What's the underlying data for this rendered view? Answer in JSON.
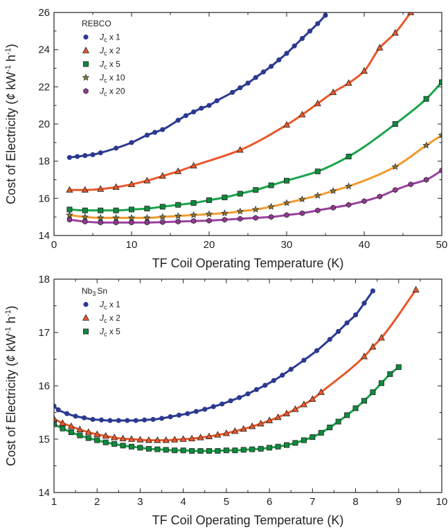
{
  "chart_data": [
    {
      "type": "line",
      "title": "",
      "legend_title": "REBCO",
      "xlabel": "TF Coil Operating Temperature (K)",
      "ylabel_main": "Cost of Electricity (",
      "ylabel_cent": "¢",
      "ylabel_unit": " kW",
      "ylabel_exp1": "-1",
      "ylabel_h": " h",
      "ylabel_exp2": "-1",
      "ylabel_close": ")",
      "xlim": [
        0,
        50
      ],
      "ylim": [
        14,
        26
      ],
      "xticks": [
        0,
        10,
        20,
        30,
        40,
        50
      ],
      "yticks": [
        14,
        16,
        18,
        20,
        22,
        24,
        26
      ],
      "legend_position": "top-left",
      "grid": false,
      "series": [
        {
          "name_base": "J",
          "name_sub": "c",
          "name_rest": " x 1",
          "color": "#2b3990",
          "line": "#2b3990",
          "marker": "circle",
          "x": [
            2,
            3,
            4,
            5,
            6,
            8,
            10,
            12,
            13,
            14,
            16,
            17,
            18,
            19,
            20,
            21,
            23,
            24,
            25,
            26,
            27,
            28,
            29,
            30,
            31,
            32,
            33,
            34,
            35
          ],
          "y": [
            18.2,
            18.25,
            18.3,
            18.35,
            18.45,
            18.7,
            19.0,
            19.4,
            19.55,
            19.7,
            20.2,
            20.45,
            20.65,
            20.85,
            21.0,
            21.25,
            21.7,
            21.95,
            22.2,
            22.5,
            22.8,
            23.1,
            23.45,
            23.8,
            24.2,
            24.6,
            25.0,
            25.4,
            25.85
          ]
        },
        {
          "name_base": "J",
          "name_sub": "c",
          "name_rest": " x 2",
          "color": "#e8582a",
          "line": "#e8582a",
          "marker": "triangle",
          "x": [
            2,
            4,
            6,
            8,
            10,
            12,
            14,
            16,
            18,
            24,
            30,
            32,
            34,
            36,
            38,
            40,
            42,
            44,
            46
          ],
          "y": [
            16.45,
            16.45,
            16.5,
            16.6,
            16.75,
            16.95,
            17.2,
            17.45,
            17.75,
            18.6,
            19.95,
            20.5,
            21.1,
            21.7,
            22.2,
            22.85,
            24.1,
            24.9,
            26.0
          ]
        },
        {
          "name_base": "J",
          "name_sub": "c",
          "name_rest": " x 5",
          "color": "#0e8a3c",
          "line": "#1aa34a",
          "marker": "square",
          "x": [
            2,
            4,
            6,
            8,
            10,
            12,
            14,
            16,
            18,
            20,
            22,
            24,
            26,
            28,
            30,
            34,
            38,
            44,
            48,
            50
          ],
          "y": [
            15.4,
            15.35,
            15.35,
            15.35,
            15.4,
            15.45,
            15.55,
            15.65,
            15.75,
            15.9,
            16.05,
            16.25,
            16.45,
            16.7,
            16.95,
            17.45,
            18.25,
            20.0,
            21.35,
            22.25
          ]
        },
        {
          "name_base": "J",
          "name_sub": "c",
          "name_rest": " x 10",
          "color": "#8a7a3a",
          "line": "#f29a2e",
          "marker": "star",
          "x": [
            2,
            4,
            6,
            8,
            10,
            12,
            14,
            16,
            18,
            20,
            22,
            24,
            26,
            28,
            30,
            32,
            34,
            36,
            38,
            44,
            48,
            50
          ],
          "y": [
            15.1,
            15.0,
            14.95,
            14.95,
            14.95,
            14.95,
            15.0,
            15.05,
            15.1,
            15.15,
            15.2,
            15.3,
            15.4,
            15.55,
            15.75,
            15.95,
            16.15,
            16.4,
            16.65,
            17.7,
            18.85,
            19.4
          ]
        },
        {
          "name_base": "J",
          "name_sub": "c",
          "name_rest": " x 20",
          "color": "#8e3a8e",
          "line": "#9a3fa0",
          "marker": "hexagon",
          "x": [
            2,
            4,
            6,
            8,
            10,
            12,
            14,
            16,
            18,
            20,
            22,
            24,
            26,
            28,
            30,
            32,
            34,
            36,
            38,
            40,
            42,
            44,
            46,
            48,
            50
          ],
          "y": [
            14.85,
            14.75,
            14.7,
            14.7,
            14.7,
            14.7,
            14.72,
            14.75,
            14.78,
            14.8,
            14.85,
            14.9,
            14.95,
            15.0,
            15.1,
            15.2,
            15.35,
            15.5,
            15.65,
            15.85,
            16.1,
            16.45,
            16.75,
            17.0,
            17.5
          ]
        }
      ]
    },
    {
      "type": "line",
      "title": "",
      "legend_title_base": "Nb",
      "legend_title_sub": "3",
      "legend_title_rest": "Sn",
      "xlabel": "TF Coil Operating Temperature (K)",
      "ylabel_main": "Cost of Electricity (",
      "ylabel_cent": "¢",
      "ylabel_unit": " kW",
      "ylabel_exp1": "-1",
      "ylabel_h": " h",
      "ylabel_exp2": "-1",
      "ylabel_close": ")",
      "xlim": [
        1,
        10
      ],
      "ylim": [
        14,
        18
      ],
      "xticks": [
        1,
        2,
        3,
        4,
        5,
        6,
        7,
        8,
        9,
        10
      ],
      "yticks": [
        14,
        15,
        16,
        17,
        18
      ],
      "legend_position": "top-left",
      "grid": false,
      "series": [
        {
          "name_base": "J",
          "name_sub": "c",
          "name_rest": " x 1",
          "color": "#2b3990",
          "line": "#2b3990",
          "marker": "circle",
          "x": [
            1.0,
            1.1,
            1.3,
            1.5,
            1.7,
            1.9,
            2.1,
            2.3,
            2.5,
            2.7,
            2.9,
            3.1,
            3.3,
            3.5,
            3.7,
            3.9,
            4.1,
            4.3,
            4.5,
            4.7,
            4.9,
            5.1,
            5.3,
            5.5,
            5.7,
            5.9,
            6.1,
            6.3,
            6.5,
            6.8,
            7.1,
            7.4,
            7.6,
            7.8,
            8.0,
            8.2,
            8.4
          ],
          "y": [
            15.62,
            15.55,
            15.48,
            15.43,
            15.4,
            15.37,
            15.36,
            15.35,
            15.35,
            15.35,
            15.35,
            15.36,
            15.37,
            15.39,
            15.42,
            15.45,
            15.48,
            15.52,
            15.56,
            15.61,
            15.66,
            15.72,
            15.78,
            15.85,
            15.93,
            16.01,
            16.1,
            16.2,
            16.31,
            16.48,
            16.66,
            16.87,
            17.02,
            17.18,
            17.33,
            17.55,
            17.78
          ]
        },
        {
          "name_base": "J",
          "name_sub": "c",
          "name_rest": " x 2",
          "color": "#e8582a",
          "line": "#e8582a",
          "marker": "triangle",
          "x": [
            1.0,
            1.2,
            1.4,
            1.6,
            1.8,
            2.0,
            2.2,
            2.4,
            2.6,
            2.8,
            3.0,
            3.2,
            3.4,
            3.6,
            3.8,
            4.0,
            4.2,
            4.4,
            4.6,
            4.8,
            5.0,
            5.2,
            5.4,
            5.6,
            5.8,
            6.0,
            6.2,
            6.4,
            6.6,
            6.8,
            7.0,
            7.2,
            8.2,
            8.4,
            8.6,
            9.4
          ],
          "y": [
            15.38,
            15.3,
            15.24,
            15.18,
            15.13,
            15.09,
            15.06,
            15.03,
            15.01,
            15.0,
            14.99,
            14.98,
            14.98,
            14.98,
            14.99,
            15.0,
            15.01,
            15.03,
            15.05,
            15.08,
            15.11,
            15.15,
            15.19,
            15.24,
            15.29,
            15.35,
            15.41,
            15.48,
            15.56,
            15.65,
            15.75,
            15.88,
            16.55,
            16.73,
            16.9,
            17.8
          ]
        },
        {
          "name_base": "J",
          "name_sub": "c",
          "name_rest": " x 5",
          "color": "#0e8a3c",
          "line": "#1aa34a",
          "marker": "square",
          "x": [
            1.0,
            1.2,
            1.4,
            1.6,
            1.8,
            2.0,
            2.2,
            2.4,
            2.6,
            2.8,
            3.0,
            3.2,
            3.4,
            3.6,
            3.8,
            4.0,
            4.2,
            4.4,
            4.6,
            4.8,
            5.0,
            5.2,
            5.4,
            5.6,
            5.8,
            6.0,
            6.2,
            6.4,
            6.6,
            6.8,
            7.0,
            7.2,
            7.4,
            7.6,
            7.8,
            8.0,
            8.2,
            8.4,
            8.6,
            8.8,
            9.0
          ],
          "y": [
            15.28,
            15.2,
            15.13,
            15.07,
            15.02,
            14.98,
            14.94,
            14.91,
            14.88,
            14.86,
            14.84,
            14.82,
            14.81,
            14.8,
            14.79,
            14.79,
            14.78,
            14.78,
            14.78,
            14.78,
            14.79,
            14.79,
            14.8,
            14.81,
            14.82,
            14.84,
            14.86,
            14.89,
            14.93,
            14.98,
            15.04,
            15.12,
            15.22,
            15.33,
            15.45,
            15.58,
            15.72,
            15.88,
            16.05,
            16.22,
            16.35
          ]
        }
      ]
    }
  ]
}
